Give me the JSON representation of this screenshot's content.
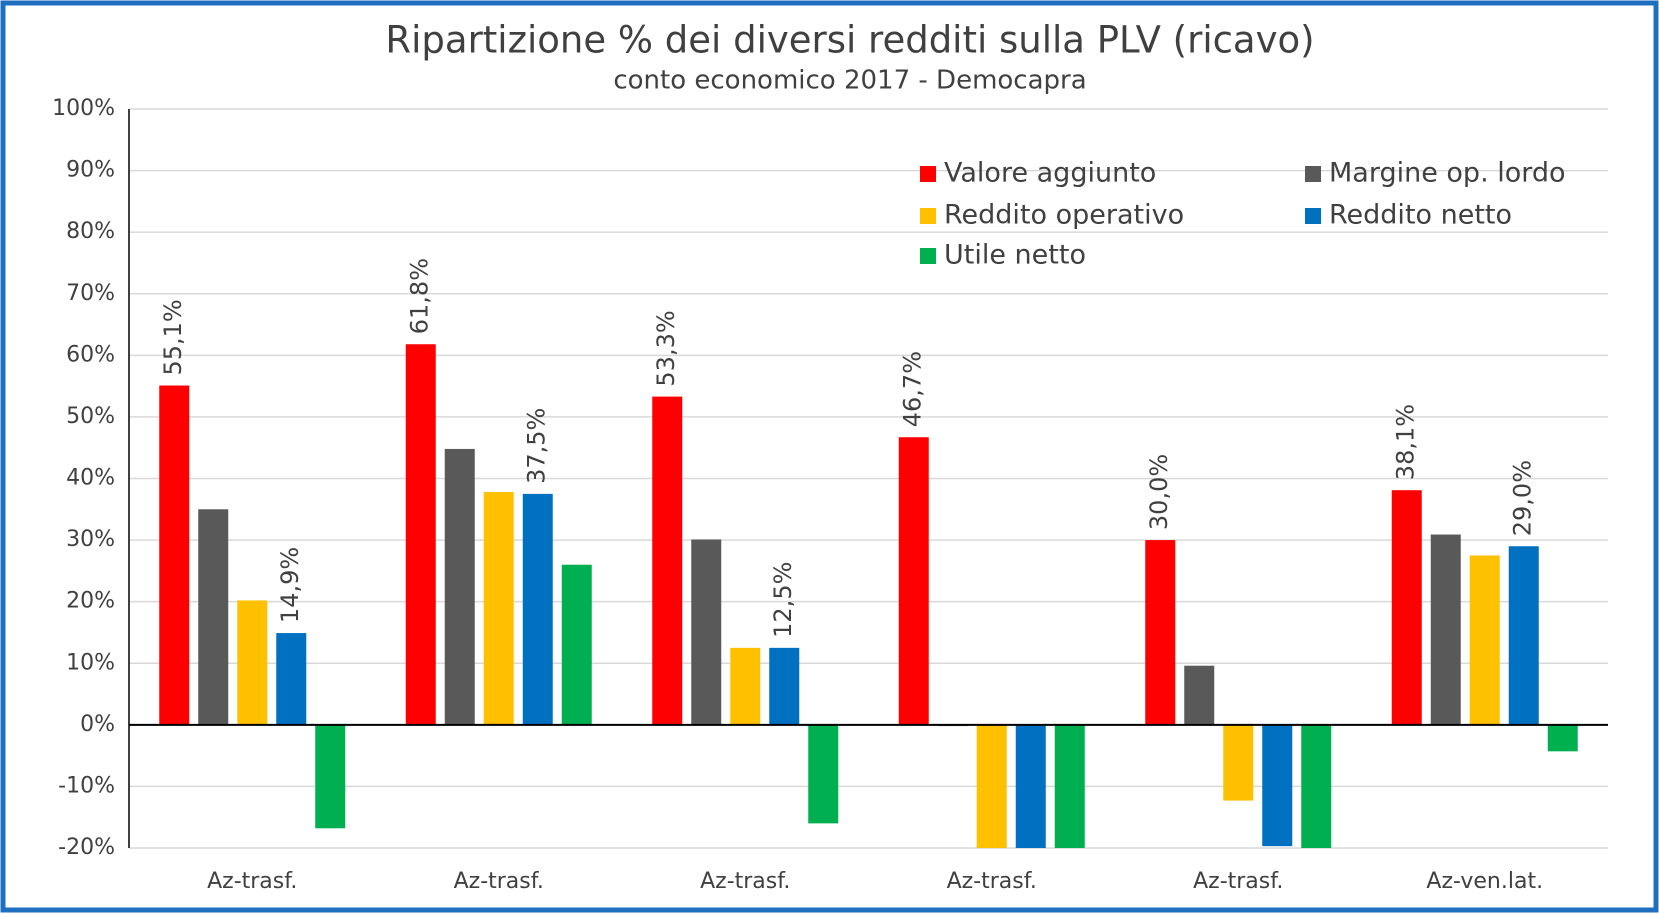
{
  "chart_data": {
    "type": "bar",
    "title": "Ripartizione % dei diversi redditi sulla PLV (ricavo)",
    "subtitle": "conto economico 2017 - Democapra",
    "categories": [
      "Az-trasf.",
      "Az-trasf.",
      "Az-trasf.",
      "Az-trasf.",
      "Az-trasf.",
      "Az-ven.lat."
    ],
    "series": [
      {
        "name": "Valore aggiunto",
        "color": "#ff0000",
        "values": [
          55.1,
          61.8,
          53.3,
          46.7,
          30.0,
          38.1
        ],
        "value_labels": [
          "55,1%",
          "61,8%",
          "53,3%",
          "46,7%",
          "30,0%",
          "38,1%"
        ]
      },
      {
        "name": "Margine op. lordo",
        "color": "#595959",
        "values": [
          35,
          44.8,
          30.1,
          -0.2,
          9.6,
          30.9
        ]
      },
      {
        "name": "Reddito operativo",
        "color": "#ffc000",
        "values": [
          20.2,
          37.8,
          12.5,
          -20,
          -12.3,
          27.5
        ]
      },
      {
        "name": "Reddito netto",
        "color": "#0070c0",
        "values": [
          14.9,
          37.5,
          12.5,
          -20,
          -19.7,
          29.0
        ],
        "value_labels": [
          "14,9%",
          "37,5%",
          "12,5%",
          null,
          null,
          "29,0%"
        ]
      },
      {
        "name": "Utile netto",
        "color": "#00b050",
        "values": [
          -16.8,
          26,
          -16,
          -20,
          -20,
          -4.3
        ]
      }
    ],
    "ylim": [
      -20,
      100
    ],
    "yticks": [
      {
        "value": -20,
        "label": "-20%"
      },
      {
        "value": -10,
        "label": "-10%"
      },
      {
        "value": 0,
        "label": "0%"
      },
      {
        "value": 10,
        "label": "10%"
      },
      {
        "value": 20,
        "label": "20%"
      },
      {
        "value": 30,
        "label": "30%"
      },
      {
        "value": 40,
        "label": "40%"
      },
      {
        "value": 50,
        "label": "50%"
      },
      {
        "value": 60,
        "label": "60%"
      },
      {
        "value": 70,
        "label": "70%"
      },
      {
        "value": 80,
        "label": "80%"
      },
      {
        "value": 90,
        "label": "90%"
      },
      {
        "value": 100,
        "label": "100%"
      }
    ],
    "grid": true,
    "legend": "top-right"
  }
}
